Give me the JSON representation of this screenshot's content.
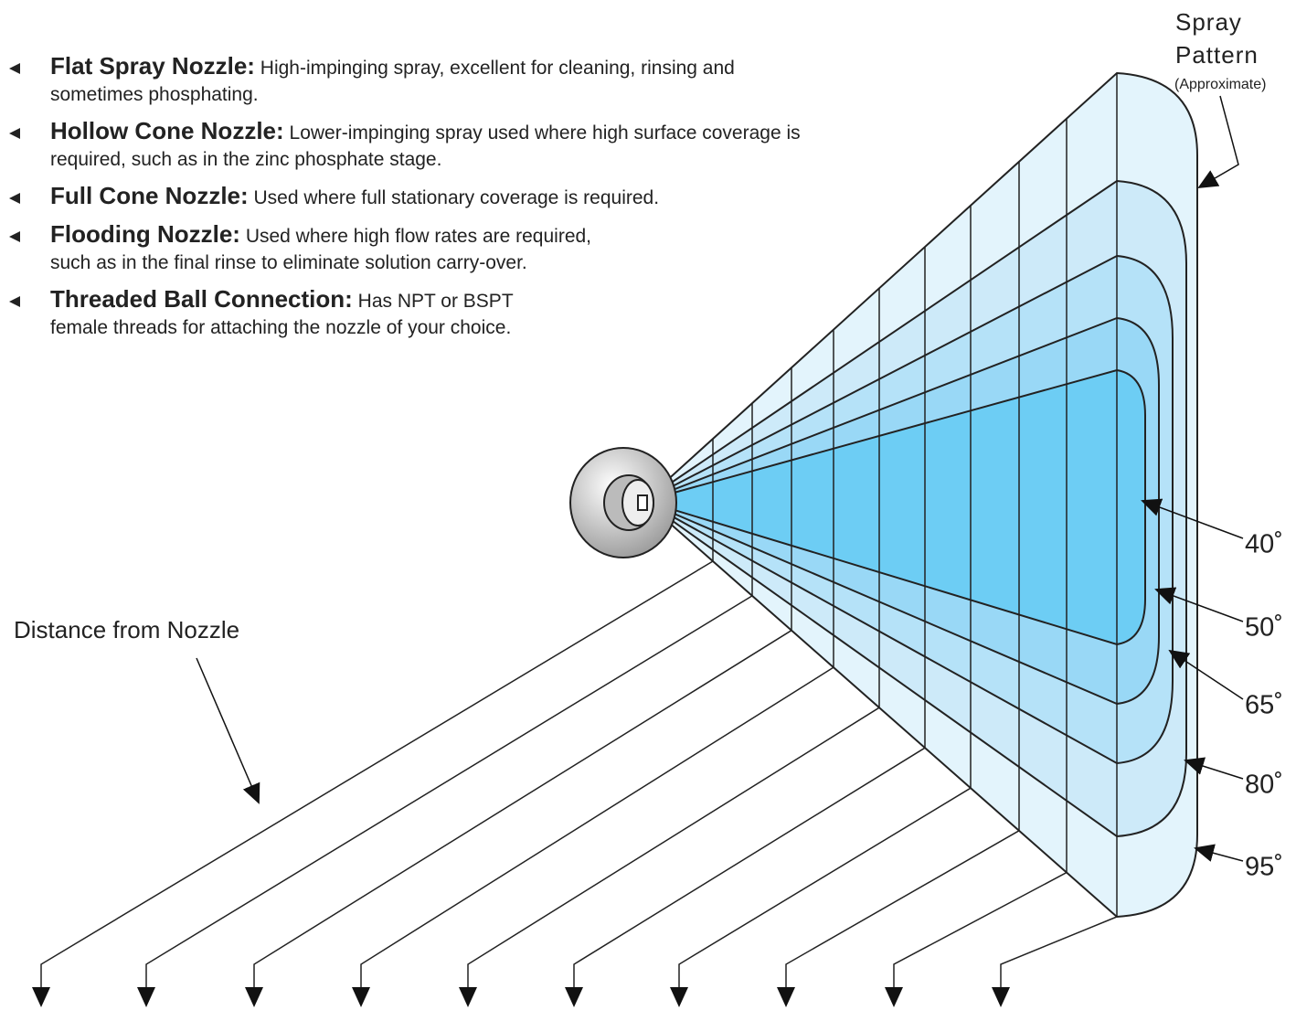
{
  "bullets": [
    {
      "title": "Flat Spray Nozzle:",
      "text": "High-impinging spray, excellent for cleaning, rinsing and sometimes phosphating."
    },
    {
      "title": "Hollow Cone Nozzle:",
      "text": "Lower-impinging spray used where high surface coverage is required, such as in the zinc phosphate stage."
    },
    {
      "title": "Full Cone Nozzle:",
      "text": "Used where full stationary coverage is required."
    },
    {
      "title": "Flooding Nozzle:",
      "text": "Used where high flow rates are required, such as in the final rinse to eliminate solution carry-over."
    },
    {
      "title": "Threaded Ball Connection:",
      "text": "Has NPT or BSPT female threads for attaching the nozzle of your choice."
    }
  ],
  "spray_pattern": {
    "title": "Spray Pattern",
    "note": "(Approximate)"
  },
  "distance_label": "Distance from Nozzle",
  "angles": [
    "40˚",
    "50˚",
    "65˚",
    "80˚",
    "95˚"
  ]
}
